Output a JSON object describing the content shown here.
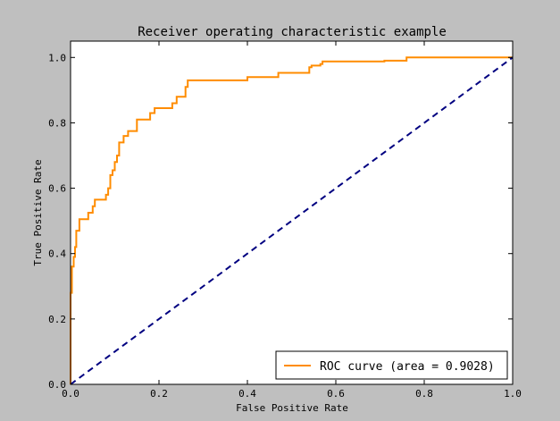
{
  "chart_data": {
    "type": "line",
    "title": "Receiver operating characteristic example",
    "xlabel": "False Positive Rate",
    "ylabel": "True Positive Rate",
    "xlim": [
      0.0,
      1.0
    ],
    "ylim": [
      0.0,
      1.05
    ],
    "xticks": [
      "0.0",
      "0.2",
      "0.4",
      "0.6",
      "0.8",
      "1.0"
    ],
    "yticks": [
      "0.0",
      "0.2",
      "0.4",
      "0.6",
      "0.8",
      "1.0"
    ],
    "grid": false,
    "legend": {
      "position": "lower-right",
      "entries": [
        "ROC curve (area = 0.9028)"
      ]
    },
    "series": [
      {
        "name": "ROC curve (area = 0.9028)",
        "color": "#ff8c00",
        "style": "solid",
        "x": [
          0.0,
          0.0,
          0.003,
          0.003,
          0.007,
          0.007,
          0.01,
          0.01,
          0.013,
          0.013,
          0.02,
          0.02,
          0.04,
          0.04,
          0.05,
          0.05,
          0.055,
          0.055,
          0.06,
          0.06,
          0.065,
          0.065,
          0.08,
          0.08,
          0.085,
          0.085,
          0.09,
          0.09,
          0.095,
          0.095,
          0.1,
          0.1,
          0.105,
          0.105,
          0.11,
          0.11,
          0.12,
          0.12,
          0.13,
          0.13,
          0.14,
          0.14,
          0.15,
          0.15,
          0.17,
          0.17,
          0.18,
          0.18,
          0.19,
          0.19,
          0.23,
          0.23,
          0.24,
          0.24,
          0.26,
          0.26,
          0.265,
          0.265,
          0.385,
          0.385,
          0.4,
          0.4,
          0.46,
          0.46,
          0.47,
          0.47,
          0.54,
          0.54,
          0.545,
          0.545,
          0.565,
          0.565,
          0.57,
          0.57,
          0.71,
          0.71,
          0.76,
          0.76,
          1.0
        ],
        "y": [
          0.0,
          0.28,
          0.28,
          0.36,
          0.36,
          0.39,
          0.39,
          0.42,
          0.42,
          0.47,
          0.47,
          0.505,
          0.505,
          0.525,
          0.525,
          0.545,
          0.545,
          0.565,
          0.565,
          0.565,
          0.565,
          0.565,
          0.565,
          0.58,
          0.58,
          0.6,
          0.6,
          0.64,
          0.64,
          0.655,
          0.655,
          0.68,
          0.68,
          0.7,
          0.7,
          0.74,
          0.74,
          0.76,
          0.76,
          0.775,
          0.775,
          0.775,
          0.775,
          0.81,
          0.81,
          0.81,
          0.81,
          0.83,
          0.83,
          0.845,
          0.845,
          0.86,
          0.86,
          0.88,
          0.88,
          0.91,
          0.91,
          0.93,
          0.93,
          0.93,
          0.93,
          0.94,
          0.94,
          0.94,
          0.94,
          0.953,
          0.953,
          0.97,
          0.97,
          0.975,
          0.975,
          0.98,
          0.98,
          0.988,
          0.988,
          0.99,
          0.99,
          1.0,
          1.0
        ]
      },
      {
        "name": "",
        "color": "#000080",
        "style": "dashed",
        "x": [
          0.0,
          1.0
        ],
        "y": [
          0.0,
          1.0
        ]
      }
    ]
  }
}
